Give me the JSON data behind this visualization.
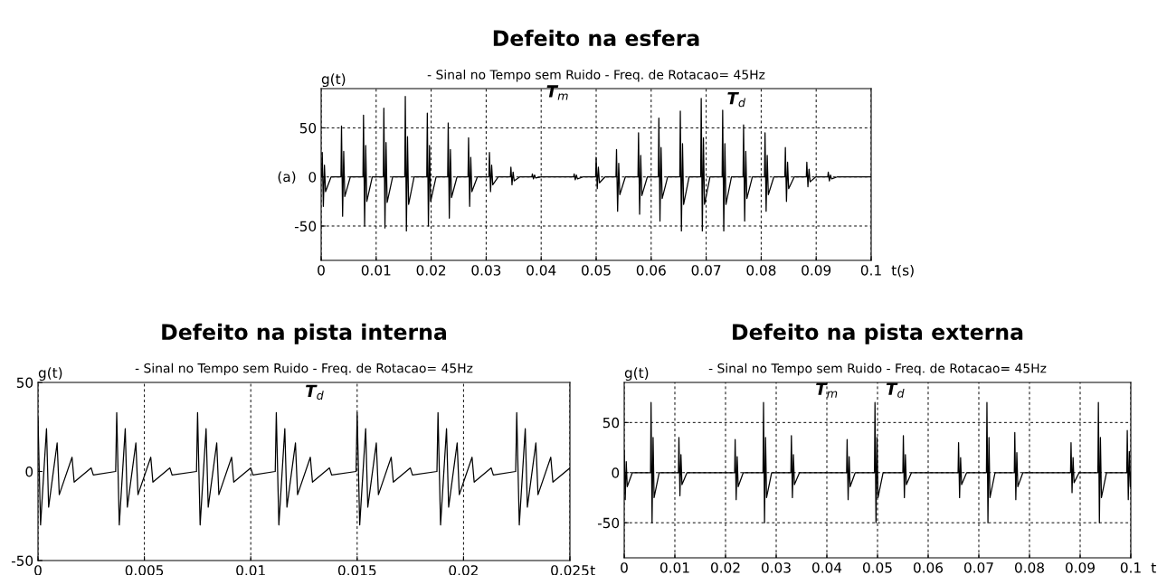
{
  "chart_data": [
    {
      "type": "line",
      "title": "Defeito na esfera",
      "subtitle": "- Sinal no Tempo sem Ruido - Freq. de Rotacao= 45Hz",
      "xlabel": "t(s)",
      "ylabel": "g(t)",
      "xlim": [
        0,
        0.1
      ],
      "ylim": [
        -85,
        90
      ],
      "xticks": [
        0,
        0.01,
        0.02,
        0.03,
        0.04,
        0.05,
        0.06,
        0.07,
        0.08,
        0.09,
        0.1
      ],
      "yticks": [
        -50,
        0,
        50
      ],
      "grid": true,
      "marker": "none",
      "line_style": "solid",
      "annotations": [
        "(a)",
        "T$_{m}$",
        "T$_{d}$"
      ],
      "series": [
        {
          "color": "#000000",
          "x": [
            0.0001,
            0.0002,
            0.0004,
            0.0006,
            0.0008,
            0.0018,
            0.0036,
            0.0037,
            0.0039,
            0.0041,
            0.0043,
            0.0053,
            0.0076,
            0.0077,
            0.0079,
            0.0081,
            0.0083,
            0.0093,
            0.0113,
            0.0114,
            0.0116,
            0.0118,
            0.012,
            0.013,
            0.0152,
            0.0153,
            0.0155,
            0.0157,
            0.0159,
            0.0169,
            0.0192,
            0.0193,
            0.0195,
            0.0197,
            0.0199,
            0.0209,
            0.023,
            0.0231,
            0.0233,
            0.0235,
            0.0237,
            0.0247,
            0.0267,
            0.0268,
            0.027,
            0.0272,
            0.0274,
            0.0284,
            0.0305,
            0.0306,
            0.0308,
            0.031,
            0.0312,
            0.0322,
            0.0344,
            0.0345,
            0.0347,
            0.0349,
            0.0351,
            0.0361,
            0.0383,
            0.0384,
            0.0386,
            0.0388,
            0.039,
            0.04,
            0.0459,
            0.046,
            0.0462,
            0.0464,
            0.0466,
            0.0476,
            0.0499,
            0.05,
            0.0502,
            0.0504,
            0.0506,
            0.0516,
            0.0536,
            0.0537,
            0.0539,
            0.0541,
            0.0543,
            0.0553,
            0.0576,
            0.0577,
            0.0579,
            0.0581,
            0.0583,
            0.0593,
            0.0613,
            0.0614,
            0.0616,
            0.0618,
            0.062,
            0.063,
            0.0652,
            0.0653,
            0.0655,
            0.0657,
            0.0659,
            0.0669,
            0.069,
            0.0691,
            0.0693,
            0.0695,
            0.0697,
            0.0707,
            0.0729,
            0.073,
            0.0732,
            0.0734,
            0.0736,
            0.0746,
            0.0767,
            0.0768,
            0.077,
            0.0772,
            0.0774,
            0.0784,
            0.0806,
            0.0807,
            0.0809,
            0.0811,
            0.0813,
            0.0823,
            0.0843,
            0.0844,
            0.0846,
            0.0848,
            0.085,
            0.086,
            0.0882,
            0.0883,
            0.0885,
            0.0887,
            0.0889,
            0.0899,
            0.0921,
            0.0922,
            0.0924,
            0.0926,
            0.0928,
            0.0938,
            0.1
          ],
          "values": [
            0,
            25,
            -30,
            12,
            -15,
            0,
            0,
            52,
            -40,
            26,
            -20,
            0,
            0,
            63,
            -50,
            32,
            -25,
            0,
            0,
            70,
            -52,
            35,
            -26,
            0,
            0,
            82,
            -55,
            41,
            -28,
            0,
            0,
            65,
            -50,
            32,
            -25,
            0,
            0,
            55,
            -42,
            28,
            -21,
            0,
            0,
            40,
            -30,
            20,
            -15,
            0,
            0,
            25,
            -15,
            12,
            -8,
            0,
            0,
            10,
            -8,
            5,
            -4,
            0,
            0,
            3,
            -2,
            2,
            -1,
            0,
            0,
            3,
            -3,
            2,
            -2,
            0,
            0,
            20,
            -12,
            10,
            -6,
            0,
            0,
            28,
            -35,
            14,
            -18,
            0,
            0,
            45,
            -38,
            22,
            -19,
            0,
            0,
            60,
            -45,
            30,
            -22,
            0,
            0,
            67,
            -55,
            34,
            -28,
            0,
            0,
            80,
            -55,
            40,
            -28,
            0,
            0,
            68,
            -55,
            34,
            -28,
            0,
            0,
            53,
            -45,
            26,
            -22,
            0,
            0,
            45,
            -35,
            22,
            -18,
            0,
            0,
            30,
            -25,
            15,
            -12,
            0,
            0,
            15,
            -10,
            8,
            -5,
            0,
            0,
            5,
            -4,
            2,
            -2,
            0,
            0
          ]
        }
      ]
    },
    {
      "type": "line",
      "title": "Defeito na pista interna",
      "subtitle": "- Sinal no Tempo sem Ruido - Freq. de Rotacao= 45Hz",
      "xlabel": "t",
      "ylabel": "g(t)",
      "xlim": [
        0,
        0.025
      ],
      "ylim": [
        -50,
        50
      ],
      "xticks": [
        0,
        0.005,
        0.01,
        0.015,
        0.02,
        0.025
      ],
      "yticks": [
        -50,
        0,
        50
      ],
      "grid": "x",
      "marker": "none",
      "line_style": "solid",
      "annotations": [
        "T$_{d}$"
      ],
      "series": [
        {
          "color": "#000000",
          "x": [
            0,
            0.00012,
            0.0004,
            0.0005,
            0.0009,
            0.001,
            0.0016,
            0.0017,
            0.0025,
            0.0026,
            0.00365,
            0.0037,
            0.00382,
            0.0041,
            0.0042,
            0.0046,
            0.0047,
            0.0053,
            0.0054,
            0.0062,
            0.0063,
            0.00745,
            0.0075,
            0.00762,
            0.0079,
            0.008,
            0.0084,
            0.0085,
            0.0091,
            0.0092,
            0.01,
            0.0101,
            0.01115,
            0.0112,
            0.01132,
            0.0116,
            0.0117,
            0.0121,
            0.0122,
            0.0128,
            0.0129,
            0.0137,
            0.0138,
            0.01495,
            0.015,
            0.01512,
            0.0154,
            0.0155,
            0.0159,
            0.016,
            0.0166,
            0.0167,
            0.0175,
            0.0176,
            0.01875,
            0.0188,
            0.01892,
            0.0192,
            0.0193,
            0.0197,
            0.0198,
            0.0204,
            0.0205,
            0.0213,
            0.0214,
            0.02245,
            0.0225,
            0.02262,
            0.0229,
            0.023,
            0.0234,
            0.0235,
            0.0241,
            0.0242,
            0.025
          ],
          "values": [
            30,
            -30,
            24,
            -20,
            16,
            -13,
            8,
            -6,
            2,
            -2,
            0,
            33,
            -30,
            24,
            -20,
            16,
            -13,
            8,
            -6,
            2,
            -2,
            0,
            33,
            -30,
            24,
            -20,
            16,
            -13,
            8,
            -6,
            2,
            -2,
            0,
            33,
            -30,
            24,
            -20,
            16,
            -13,
            8,
            -6,
            2,
            -2,
            0,
            33,
            -30,
            24,
            -20,
            16,
            -13,
            8,
            -6,
            2,
            -2,
            0,
            33,
            -30,
            24,
            -20,
            16,
            -13,
            8,
            -6,
            2,
            -2,
            0,
            33,
            -30,
            24,
            -20,
            16,
            -13,
            8,
            -6,
            2
          ]
        }
      ]
    },
    {
      "type": "line",
      "title": "Defeito na pista externa",
      "subtitle": "- Sinal no Tempo sem Ruido - Freq. de Rotacao= 45Hz",
      "xlabel": "t",
      "ylabel": "g(t)",
      "xlim": [
        0,
        0.1
      ],
      "ylim": [
        -85,
        90
      ],
      "xticks": [
        0,
        0.01,
        0.02,
        0.03,
        0.04,
        0.05,
        0.06,
        0.07,
        0.08,
        0.09,
        0.1
      ],
      "yticks": [
        -50,
        0,
        50
      ],
      "grid": true,
      "marker": "none",
      "line_style": "solid",
      "annotations": [
        "T$_{m}$",
        "T$_{d}$"
      ],
      "series": [
        {
          "color": "#000000",
          "x": [
            0,
            0.0002,
            0.0004,
            0.0006,
            0.0016,
            0.0052,
            0.0053,
            0.0055,
            0.0057,
            0.0059,
            0.0069,
            0.0107,
            0.0108,
            0.011,
            0.0112,
            0.0114,
            0.0124,
            0.0218,
            0.0219,
            0.0221,
            0.0223,
            0.0225,
            0.0235,
            0.0274,
            0.0275,
            0.0277,
            0.0279,
            0.0281,
            0.0291,
            0.0329,
            0.033,
            0.0332,
            0.0334,
            0.0336,
            0.0346,
            0.0439,
            0.044,
            0.0442,
            0.0444,
            0.0446,
            0.0456,
            0.0494,
            0.0495,
            0.0497,
            0.0499,
            0.0501,
            0.0511,
            0.055,
            0.0551,
            0.0553,
            0.0555,
            0.0557,
            0.0567,
            0.0659,
            0.066,
            0.0662,
            0.0664,
            0.0666,
            0.0676,
            0.0715,
            0.0716,
            0.0718,
            0.072,
            0.0722,
            0.0732,
            0.077,
            0.0771,
            0.0773,
            0.0775,
            0.0777,
            0.0787,
            0.0881,
            0.0882,
            0.0884,
            0.0886,
            0.0888,
            0.0898,
            0.0935,
            0.0936,
            0.0938,
            0.094,
            0.0942,
            0.0952,
            0.0992,
            0.0993,
            0.0995,
            0.0997,
            0.0999,
            0.1
          ],
          "values": [
            22,
            -27,
            11,
            -14,
            0,
            0,
            70,
            -50,
            35,
            -25,
            0,
            0,
            35,
            -23,
            18,
            -12,
            0,
            0,
            33,
            -27,
            16,
            -14,
            0,
            0,
            70,
            -50,
            35,
            -25,
            0,
            0,
            37,
            -25,
            18,
            -12,
            0,
            0,
            33,
            -27,
            16,
            -14,
            0,
            0,
            70,
            -50,
            35,
            -25,
            0,
            0,
            37,
            -25,
            18,
            -12,
            0,
            0,
            30,
            -25,
            15,
            -12,
            0,
            0,
            70,
            -50,
            35,
            -25,
            0,
            0,
            40,
            -27,
            20,
            -14,
            0,
            0,
            30,
            -20,
            15,
            -10,
            0,
            0,
            70,
            -50,
            35,
            -25,
            0,
            0,
            42,
            -27,
            21,
            -14,
            0
          ]
        }
      ]
    }
  ]
}
